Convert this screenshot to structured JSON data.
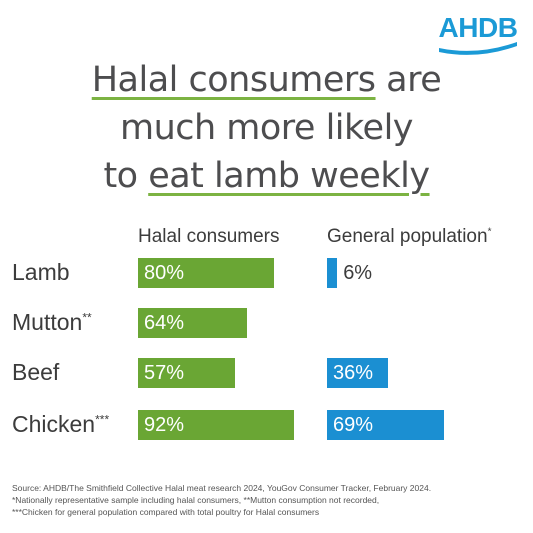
{
  "logo": {
    "text": "AHDB",
    "color": "#1b9ad6"
  },
  "headline": {
    "line1_hl": "Halal consumers",
    "line1_rest": " are",
    "line2": "much more likely",
    "line3_pre": "to ",
    "line3_hl": "eat lamb weekly"
  },
  "chart_data": {
    "type": "bar",
    "orientation": "horizontal",
    "categories": [
      "Lamb",
      "Mutton",
      "Beef",
      "Chicken"
    ],
    "category_marks": [
      "",
      "**",
      "",
      "***"
    ],
    "series": [
      {
        "name": "Halal consumers",
        "mark": "",
        "values": [
          80,
          64,
          57,
          92
        ],
        "labels": [
          "80%",
          "64%",
          "57%",
          "92%"
        ],
        "color": "#6aa634"
      },
      {
        "name": "General population",
        "mark": "*",
        "values": [
          6,
          null,
          36,
          69
        ],
        "labels": [
          "6%",
          "",
          "36%",
          "69%"
        ],
        "color": "#1b8fd2"
      }
    ],
    "xlim": [
      0,
      100
    ],
    "grid": false,
    "legend": "column headers above bars"
  },
  "footnotes": {
    "source": "Source: AHDB/The Smithfield Collective Halal meat research 2024, YouGov Consumer Tracker, February 2024.",
    "note1": "*Nationally representative sample including halal consumers, **Mutton consumption not recorded,",
    "note2": "***Chicken for general population compared with total poultry for Halal consumers"
  }
}
